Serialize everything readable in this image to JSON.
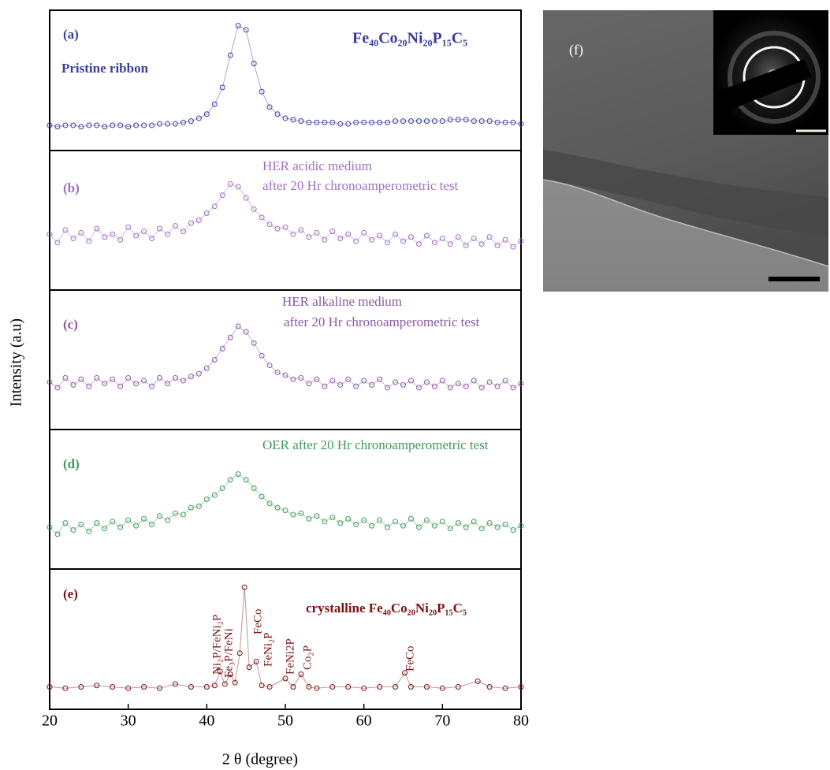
{
  "chart_data": [
    {
      "type": "scatter",
      "label": "(a)",
      "color": "#3a3d9c",
      "annotations": [
        "Pristine ribbon",
        "Fe₄₀Co₂₀Ni₂₀P₁₅C₅"
      ],
      "xlim": [
        20,
        80
      ],
      "ylim": [
        0,
        100
      ],
      "x": [
        20,
        21,
        22,
        23,
        24,
        25,
        26,
        27,
        28,
        29,
        30,
        31,
        32,
        33,
        34,
        35,
        36,
        37,
        38,
        39,
        40,
        41,
        42,
        43,
        44,
        45,
        46,
        47,
        48,
        49,
        50,
        51,
        52,
        53,
        54,
        55,
        56,
        57,
        58,
        59,
        60,
        61,
        62,
        63,
        64,
        65,
        66,
        67,
        68,
        69,
        70,
        71,
        72,
        73,
        74,
        75,
        76,
        77,
        78,
        79,
        80
      ],
      "values": [
        18,
        17,
        18,
        18,
        17,
        18,
        18,
        17,
        18,
        18,
        17,
        18,
        18,
        18,
        19,
        19,
        19,
        20,
        21,
        23,
        26,
        33,
        45,
        68,
        89,
        86,
        62,
        42,
        31,
        26,
        23,
        22,
        21,
        20,
        20,
        20,
        20,
        19,
        19,
        20,
        20,
        20,
        20,
        20,
        21,
        21,
        21,
        21,
        21,
        21,
        21,
        22,
        22,
        22,
        21,
        21,
        21,
        20,
        20,
        20,
        19
      ]
    },
    {
      "type": "scatter",
      "label": "(b)",
      "color": "#a070c0",
      "annotations": [
        "HER acidic medium",
        "after 20 Hr chronoamperometric test"
      ],
      "xlim": [
        20,
        80
      ],
      "ylim": [
        0,
        100
      ],
      "x": [
        20,
        21,
        22,
        23,
        24,
        25,
        26,
        27,
        28,
        29,
        30,
        31,
        32,
        33,
        34,
        35,
        36,
        37,
        38,
        39,
        40,
        41,
        42,
        43,
        44,
        45,
        46,
        47,
        48,
        49,
        50,
        51,
        52,
        53,
        54,
        55,
        56,
        57,
        58,
        59,
        60,
        61,
        62,
        63,
        64,
        65,
        66,
        67,
        68,
        69,
        70,
        71,
        72,
        73,
        74,
        75,
        76,
        77,
        78,
        79,
        80
      ],
      "values": [
        40,
        34,
        43,
        37,
        41,
        35,
        44,
        38,
        40,
        36,
        45,
        39,
        42,
        37,
        44,
        40,
        46,
        42,
        48,
        50,
        55,
        60,
        68,
        76,
        74,
        66,
        58,
        52,
        47,
        44,
        45,
        40,
        43,
        38,
        41,
        36,
        42,
        37,
        40,
        35,
        41,
        36,
        39,
        34,
        40,
        35,
        38,
        33,
        39,
        34,
        37,
        33,
        38,
        32,
        37,
        33,
        38,
        32,
        36,
        31,
        35
      ]
    },
    {
      "type": "scatter",
      "label": "(c)",
      "color": "#8a5aa0",
      "annotations": [
        "HER alkaline medium",
        "after 20 Hr chronoamperometric test"
      ],
      "xlim": [
        20,
        80
      ],
      "ylim": [
        0,
        100
      ],
      "x": [
        20,
        21,
        22,
        23,
        24,
        25,
        26,
        27,
        28,
        29,
        30,
        31,
        32,
        33,
        34,
        35,
        36,
        37,
        38,
        39,
        40,
        41,
        42,
        43,
        44,
        45,
        46,
        47,
        48,
        49,
        50,
        51,
        52,
        53,
        54,
        55,
        56,
        57,
        58,
        59,
        60,
        61,
        62,
        63,
        64,
        65,
        66,
        67,
        68,
        69,
        70,
        71,
        72,
        73,
        74,
        75,
        76,
        77,
        78,
        79,
        80
      ],
      "values": [
        34,
        30,
        37,
        32,
        36,
        31,
        37,
        33,
        36,
        31,
        37,
        33,
        35,
        31,
        37,
        33,
        37,
        35,
        38,
        40,
        44,
        50,
        58,
        66,
        74,
        70,
        62,
        53,
        46,
        41,
        39,
        36,
        37,
        33,
        36,
        31,
        35,
        32,
        36,
        31,
        35,
        32,
        36,
        30,
        34,
        32,
        35,
        30,
        34,
        31,
        35,
        30,
        33,
        31,
        35,
        30,
        34,
        31,
        35,
        30,
        33
      ]
    },
    {
      "type": "scatter",
      "label": "(d)",
      "color": "#3f9a5a",
      "annotations": [
        "OER after 20 Hr chronoamperometric test"
      ],
      "xlim": [
        20,
        80
      ],
      "ylim": [
        0,
        100
      ],
      "x": [
        20,
        21,
        22,
        23,
        24,
        25,
        26,
        27,
        28,
        29,
        30,
        31,
        32,
        33,
        34,
        35,
        36,
        37,
        38,
        39,
        40,
        41,
        42,
        43,
        44,
        45,
        46,
        47,
        48,
        49,
        50,
        51,
        52,
        53,
        54,
        55,
        56,
        57,
        58,
        59,
        60,
        61,
        62,
        63,
        64,
        65,
        66,
        67,
        68,
        69,
        70,
        71,
        72,
        73,
        74,
        75,
        76,
        77,
        78,
        79,
        80
      ],
      "values": [
        30,
        25,
        33,
        28,
        32,
        27,
        33,
        29,
        34,
        30,
        35,
        31,
        36,
        32,
        38,
        35,
        40,
        39,
        44,
        45,
        50,
        53,
        58,
        64,
        68,
        64,
        58,
        52,
        47,
        44,
        42,
        39,
        40,
        36,
        38,
        34,
        37,
        33,
        36,
        32,
        35,
        31,
        35,
        30,
        34,
        31,
        36,
        30,
        35,
        31,
        34,
        29,
        33,
        30,
        34,
        29,
        33,
        30,
        32,
        28,
        31
      ]
    },
    {
      "type": "scatter",
      "label": "(e)",
      "color": "#7a1212",
      "annotations": [
        "crystalline Fe₄₀Co₂₀Ni₂₀P₁₅C₅",
        "Ni₂P/FeNi₂P",
        "Fe₃P/FeNi",
        "FeCo",
        "FeNi₂P",
        "FeNi2P",
        "Co₂P",
        "FeCo"
      ],
      "xlim": [
        20,
        80
      ],
      "ylim": [
        0,
        100
      ],
      "xticks": [
        20,
        30,
        40,
        50,
        60,
        70,
        80
      ],
      "xlabel": "2 θ (degree)",
      "x": [
        20,
        22,
        24,
        26,
        28,
        30,
        32,
        34,
        36,
        38,
        40,
        41,
        41.7,
        42.3,
        43,
        43.6,
        44.2,
        44.8,
        45.4,
        46.3,
        47,
        48,
        50,
        51,
        52,
        53,
        54,
        56,
        58,
        60,
        62,
        64,
        65.2,
        66,
        68,
        70,
        72,
        74.5,
        76,
        78,
        80
      ],
      "values": [
        16,
        15,
        16,
        17,
        16,
        15,
        16,
        15,
        18,
        16,
        16,
        17,
        27,
        18,
        25,
        19,
        40,
        87,
        30,
        34,
        17,
        16,
        22,
        16,
        25,
        16,
        15,
        16,
        16,
        15,
        16,
        16,
        26,
        16,
        16,
        15,
        16,
        20,
        16,
        15,
        16
      ]
    }
  ],
  "ylabel": "Intensity (a.u)",
  "figure_f": {
    "label": "(f)"
  }
}
